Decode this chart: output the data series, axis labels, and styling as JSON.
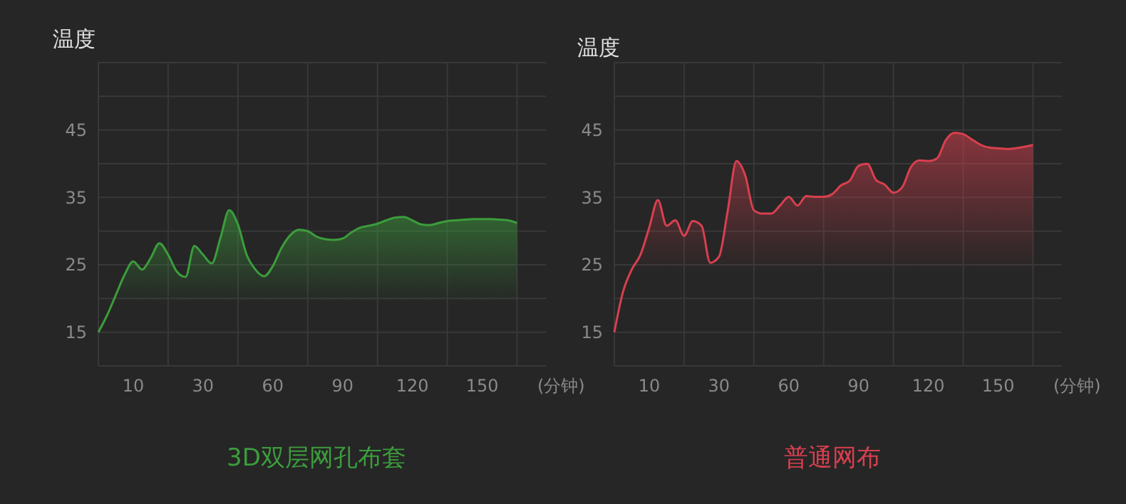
{
  "chart_data": [
    {
      "type": "area",
      "ylabel": "温度",
      "xlabel": "(分钟)",
      "legend": "bottom",
      "grid": true,
      "categories": [
        null,
        null,
        null,
        null,
        "10",
        null,
        null,
        null,
        null,
        null,
        null,
        null,
        "30",
        null,
        null,
        null,
        null,
        null,
        null,
        null,
        "60",
        null,
        null,
        null,
        null,
        null,
        null,
        null,
        "90",
        null,
        null,
        null,
        null,
        null,
        null,
        null,
        "120",
        null,
        null,
        null,
        null,
        null,
        null,
        null,
        "150",
        null,
        null,
        null,
        null
      ],
      "ylim": [
        10,
        55
      ],
      "yticks": [
        {
          "value": 10,
          "label": null
        },
        15,
        {
          "value": 20,
          "label": null
        },
        25,
        {
          "value": 30,
          "label": null
        },
        35,
        {
          "value": 40,
          "label": null
        },
        45,
        {
          "value": 50,
          "label": null
        },
        {
          "value": 55,
          "label": null
        }
      ],
      "series": [
        {
          "name": "3D双层网孔布套",
          "color": "#3c9d3c",
          "values": [
            15,
            17.5,
            20.5,
            23.5,
            25.5,
            24.3,
            26,
            28.2,
            26.5,
            24,
            23.2,
            27.8,
            26.5,
            25.2,
            29,
            33.1,
            31,
            26.5,
            24.3,
            23.3,
            24.8,
            27.5,
            29.4,
            30.2,
            30,
            29.2,
            28.8,
            28.7,
            28.9,
            29.8,
            30.5,
            30.8,
            31.1,
            31.6,
            32,
            32.1,
            31.6,
            31,
            30.9,
            31.2,
            31.5,
            31.6,
            31.7,
            31.8,
            31.8,
            31.8,
            31.7,
            31.6,
            31.2
          ]
        }
      ]
    },
    {
      "type": "area",
      "ylabel": "温度",
      "xlabel": "(分钟)",
      "legend": "bottom",
      "grid": true,
      "categories": [
        null,
        null,
        null,
        null,
        "10",
        null,
        null,
        null,
        null,
        null,
        null,
        null,
        "30",
        null,
        null,
        null,
        null,
        null,
        null,
        null,
        "60",
        null,
        null,
        null,
        null,
        null,
        null,
        null,
        "90",
        null,
        null,
        null,
        null,
        null,
        null,
        null,
        "120",
        null,
        null,
        null,
        null,
        null,
        null,
        null,
        "150",
        null,
        null,
        null,
        null
      ],
      "ylim": [
        10,
        55
      ],
      "yticks": [
        {
          "value": 10,
          "label": null
        },
        15,
        {
          "value": 20,
          "label": null
        },
        25,
        {
          "value": 30,
          "label": null
        },
        35,
        {
          "value": 40,
          "label": null
        },
        45,
        {
          "value": 50,
          "label": null
        },
        {
          "value": 55,
          "label": null
        }
      ],
      "series": [
        {
          "name": "普通网布",
          "color": "#d8404f",
          "values": [
            15,
            21,
            24.3,
            26.5,
            30.5,
            34.6,
            30.8,
            31.6,
            29.3,
            31.5,
            30.8,
            25.3,
            26.2,
            33,
            40.4,
            38.3,
            33.1,
            32.6,
            32.6,
            33.8,
            35.1,
            33.8,
            35.2,
            35.1,
            35.1,
            35.5,
            36.8,
            37.5,
            39.7,
            40,
            37.6,
            36.9,
            35.7,
            36.5,
            39.5,
            40.5,
            40.4,
            40.8,
            43.5,
            44.6,
            44.4,
            43.6,
            42.8,
            42.4,
            42.3,
            42.2,
            42.3,
            42.5,
            42.8
          ]
        }
      ]
    }
  ]
}
